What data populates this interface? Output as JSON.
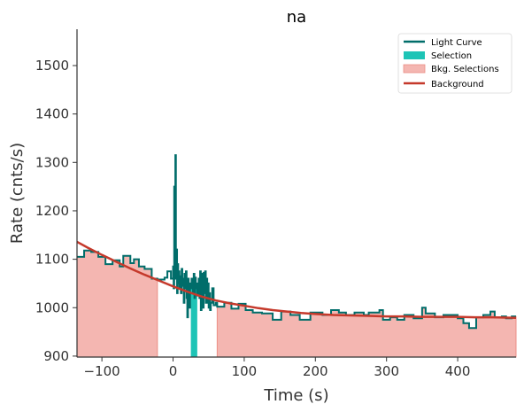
{
  "chart_data": {
    "type": "line",
    "title": "na",
    "xlabel": "Time (s)",
    "ylabel": "Rate (cnts/s)",
    "xlim": [
      -135,
      482
    ],
    "ylim": [
      898,
      1575
    ],
    "xticks": [
      -100,
      0,
      100,
      200,
      300,
      400
    ],
    "yticks": [
      900,
      1000,
      1100,
      1200,
      1300,
      1400,
      1500
    ],
    "xtick_labels": [
      "−100",
      "0",
      "100",
      "200",
      "300",
      "400"
    ],
    "ytick_labels": [
      "900",
      "1000",
      "1100",
      "1200",
      "1300",
      "1400",
      "1500"
    ],
    "grid": false,
    "legend_position": "top-right",
    "legend": [
      {
        "label": "Light Curve",
        "kind": "line",
        "color": "#006d6a"
      },
      {
        "label": "Selection",
        "kind": "patch",
        "color": "#1ec4b6"
      },
      {
        "label": "Bkg. Selections",
        "kind": "patch",
        "color": "#f4b6b1"
      },
      {
        "label": "Background",
        "kind": "line",
        "color": "#c5392b"
      }
    ],
    "colors": {
      "light_curve": "#006d6a",
      "selection": "#1ec4b6",
      "bkg_fill": "#f4b6b1",
      "bkg_edge": "#ec8f86",
      "background": "#c5392b"
    },
    "bkg_selections": [
      [
        -135,
        -22
      ],
      [
        62,
        482
      ]
    ],
    "selection": [
      25,
      34
    ],
    "light_curve": {
      "steps": [
        [
          -135,
          1105
        ],
        [
          -125,
          1118
        ],
        [
          -115,
          1115
        ],
        [
          -105,
          1105
        ],
        [
          -95,
          1090
        ],
        [
          -85,
          1098
        ],
        [
          -75,
          1085
        ],
        [
          -70,
          1107
        ],
        [
          -60,
          1092
        ],
        [
          -55,
          1100
        ],
        [
          -48,
          1085
        ],
        [
          -40,
          1080
        ],
        [
          -30,
          1060
        ],
        [
          -22,
          1058
        ],
        [
          -12,
          1062
        ],
        [
          -8,
          1075
        ],
        [
          -3,
          1060
        ],
        [
          0,
          1085
        ],
        [
          0.8,
          1040
        ],
        [
          1.6,
          1250
        ],
        [
          2.4,
          1100
        ],
        [
          3.2,
          1315
        ],
        [
          4,
          1060
        ],
        [
          4.8,
          1120
        ],
        [
          5.6,
          1030
        ],
        [
          6.4,
          1090
        ],
        [
          7.2,
          1050
        ],
        [
          8,
          1075
        ],
        [
          9,
          1040
        ],
        [
          10,
          1065
        ],
        [
          11,
          1030
        ],
        [
          12,
          1080
        ],
        [
          13,
          1045
        ],
        [
          14,
          1060
        ],
        [
          15,
          1010
        ],
        [
          16,
          1070
        ],
        [
          17,
          1040
        ],
        [
          18,
          1075
        ],
        [
          19,
          1020
        ],
        [
          20,
          980
        ],
        [
          21,
          1060
        ],
        [
          22,
          1050
        ],
        [
          23,
          1000
        ],
        [
          24,
          1050
        ],
        [
          25,
          1040
        ],
        [
          26,
          1060
        ],
        [
          27,
          1060
        ],
        [
          28,
          1030
        ],
        [
          29,
          1070
        ],
        [
          30,
          1020
        ],
        [
          31,
          1062
        ],
        [
          32,
          1040
        ],
        [
          33,
          1050
        ],
        [
          34,
          1025
        ],
        [
          35,
          1040
        ],
        [
          36,
          1060
        ],
        [
          37,
          1020
        ],
        [
          38,
          1075
        ],
        [
          39,
          995
        ],
        [
          40,
          1070
        ],
        [
          41,
          1050
        ],
        [
          42,
          1000
        ],
        [
          43,
          1072
        ],
        [
          44,
          1030
        ],
        [
          45,
          1075
        ],
        [
          46,
          1010
        ],
        [
          47,
          1060
        ],
        [
          48,
          1010
        ],
        [
          49,
          1050
        ],
        [
          50,
          1000
        ],
        [
          51,
          1030
        ],
        [
          52,
          995
        ],
        [
          53,
          1010
        ],
        [
          55,
          1040
        ],
        [
          57,
          1005
        ],
        [
          60,
          1010
        ],
        [
          62,
          1002
        ],
        [
          72,
          1010
        ],
        [
          82,
          998
        ],
        [
          92,
          1008
        ],
        [
          102,
          995
        ],
        [
          112,
          990
        ],
        [
          125,
          988
        ],
        [
          140,
          975
        ],
        [
          152,
          992
        ],
        [
          165,
          985
        ],
        [
          178,
          975
        ],
        [
          193,
          990
        ],
        [
          210,
          985
        ],
        [
          222,
          995
        ],
        [
          233,
          990
        ],
        [
          243,
          985
        ],
        [
          255,
          990
        ],
        [
          268,
          985
        ],
        [
          275,
          990
        ],
        [
          290,
          995
        ],
        [
          295,
          975
        ],
        [
          305,
          980
        ],
        [
          315,
          975
        ],
        [
          325,
          985
        ],
        [
          338,
          978
        ],
        [
          350,
          1000
        ],
        [
          355,
          988
        ],
        [
          368,
          980
        ],
        [
          380,
          985
        ],
        [
          392,
          985
        ],
        [
          400,
          978
        ],
        [
          408,
          968
        ],
        [
          416,
          958
        ],
        [
          426,
          980
        ],
        [
          436,
          985
        ],
        [
          446,
          992
        ],
        [
          452,
          980
        ],
        [
          462,
          982
        ],
        [
          468,
          978
        ],
        [
          476,
          982
        ]
      ],
      "end": 482
    },
    "background_model": {
      "x": [
        -135,
        -120,
        -100,
        -80,
        -60,
        -40,
        -20,
        0,
        20,
        40,
        60,
        80,
        100,
        120,
        140,
        160,
        180,
        200,
        225,
        250,
        275,
        300,
        325,
        350,
        375,
        400,
        425,
        450,
        482
      ],
      "y": [
        1136,
        1124,
        1109,
        1095,
        1081,
        1068,
        1056,
        1044,
        1033,
        1023,
        1015,
        1009,
        1004,
        999,
        995,
        992,
        989,
        987,
        985,
        984,
        983,
        982,
        982,
        981,
        981,
        981,
        980,
        980,
        979
      ]
    }
  }
}
